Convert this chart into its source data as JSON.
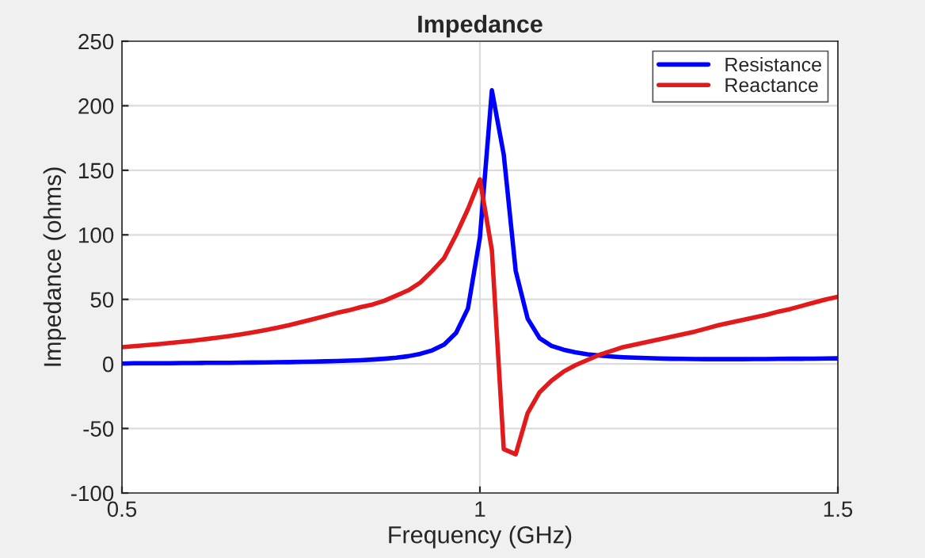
{
  "chart_data": {
    "type": "line",
    "title": "Impedance",
    "xlabel": "Frequency (GHz)",
    "ylabel": "Impedance (ohms)",
    "x": [
      0.5,
      0.5167,
      0.5333,
      0.55,
      0.5667,
      0.5833,
      0.6,
      0.6167,
      0.6333,
      0.65,
      0.6667,
      0.6833,
      0.7,
      0.7167,
      0.7333,
      0.75,
      0.7667,
      0.7833,
      0.8,
      0.8167,
      0.8333,
      0.85,
      0.8667,
      0.8833,
      0.9,
      0.9167,
      0.9333,
      0.95,
      0.9667,
      0.9833,
      1.0,
      1.0167,
      1.0333,
      1.05,
      1.0667,
      1.0833,
      1.1,
      1.1167,
      1.1333,
      1.15,
      1.1667,
      1.1833,
      1.2,
      1.2167,
      1.2333,
      1.25,
      1.2667,
      1.2833,
      1.3,
      1.3167,
      1.3333,
      1.35,
      1.3667,
      1.3833,
      1.4,
      1.4167,
      1.4333,
      1.45,
      1.4667,
      1.4833,
      1.5
    ],
    "series": [
      {
        "name": "Resistance",
        "color": "#0000ff",
        "values": [
          0.3,
          0.5,
          0.5,
          0.6,
          0.6,
          0.7,
          0.7,
          0.8,
          0.9,
          0.9,
          1.0,
          1.1,
          1.2,
          1.3,
          1.4,
          1.6,
          1.8,
          2.0,
          2.2,
          2.5,
          2.9,
          3.4,
          4.0,
          4.8,
          6.0,
          7.8,
          10.5,
          15,
          24,
          43,
          98,
          212,
          162,
          72,
          35,
          20,
          14,
          11,
          9,
          7.5,
          6.5,
          5.8,
          5.2,
          4.8,
          4.5,
          4.2,
          4.0,
          3.9,
          3.8,
          3.7,
          3.7,
          3.7,
          3.7,
          3.8,
          3.8,
          3.9,
          4.0,
          4.0,
          4.1,
          4.2,
          4.3
        ]
      },
      {
        "name": "Reactance",
        "color": "#e31a1c",
        "values": [
          13.0,
          13.7,
          14.5,
          15.3,
          16.2,
          17.1,
          18.1,
          19.2,
          20.4,
          21.6,
          23.0,
          24.5,
          26.2,
          28.0,
          30.0,
          32.3,
          34.6,
          37,
          39.5,
          41.5,
          44,
          46,
          49,
          53,
          57,
          63,
          72,
          82,
          100,
          120,
          143,
          88,
          -66,
          -70,
          -38,
          -22,
          -13,
          -6,
          -1,
          3,
          7,
          10,
          13,
          15,
          17,
          19,
          21,
          23,
          25,
          27.5,
          30,
          32,
          34,
          36,
          38,
          40.5,
          42.5,
          45,
          47.5,
          50,
          52
        ]
      }
    ],
    "xlim": [
      0.5,
      1.5
    ],
    "xticks": [
      0.5,
      1,
      1.5
    ],
    "ylim": [
      -100,
      250
    ],
    "yticks": [
      -100,
      -50,
      0,
      50,
      100,
      150,
      200,
      250
    ],
    "grid": true,
    "legend": "top right",
    "marker": "none",
    "line_style": "solid"
  }
}
